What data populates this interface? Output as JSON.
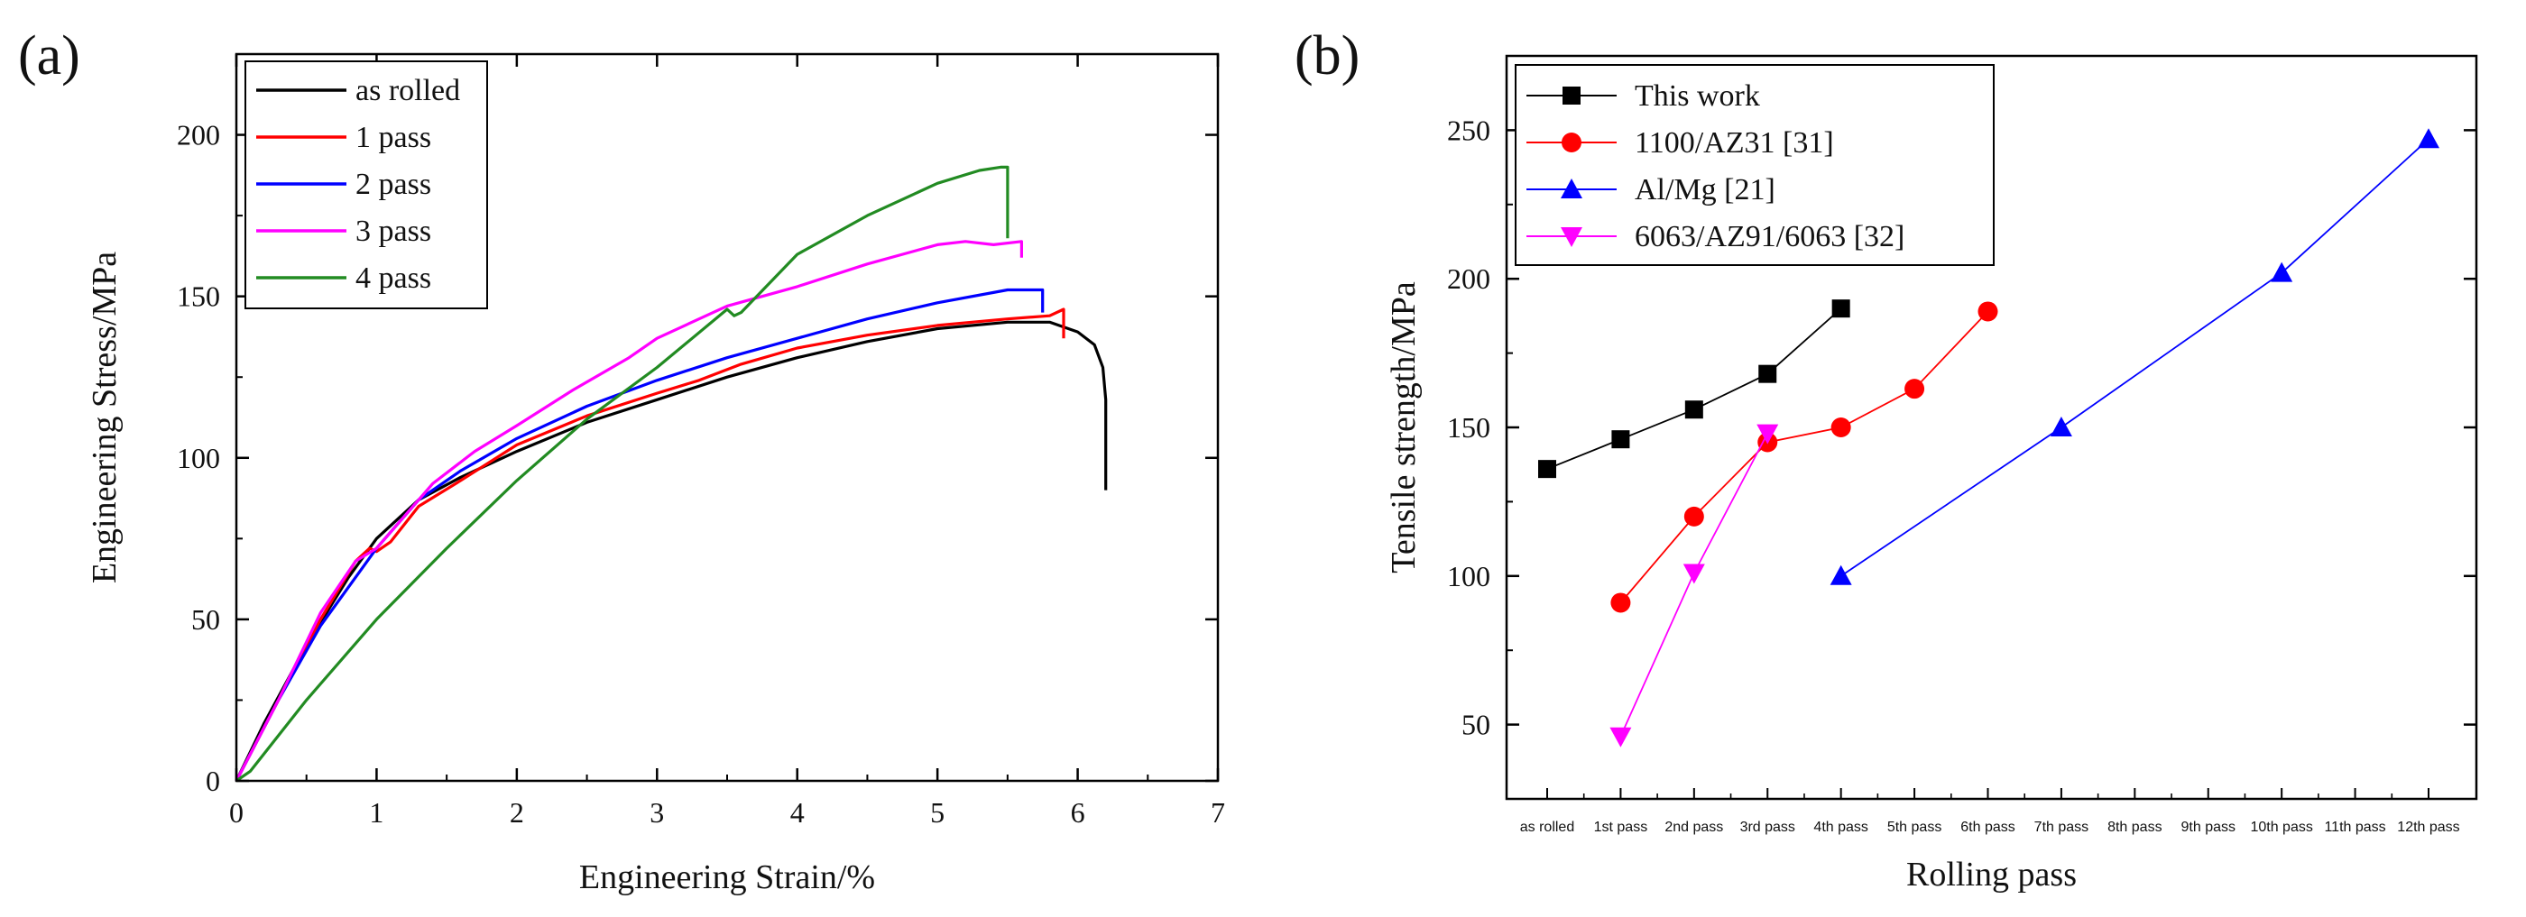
{
  "chart_data": [
    {
      "panel": "(a)",
      "type": "line",
      "xlabel": "Engineering Strain/%",
      "ylabel": "Engineering Stress/MPa",
      "xlim": [
        0,
        7
      ],
      "ylim": [
        0,
        225
      ],
      "xticks": [
        0,
        1,
        2,
        3,
        4,
        5,
        6,
        7
      ],
      "yticks": [
        0,
        50,
        100,
        150,
        200
      ],
      "legend_position": "top-left",
      "series": [
        {
          "name": "as rolled",
          "color": "#000000",
          "x": [
            0,
            0.2,
            0.5,
            0.8,
            1.0,
            1.3,
            1.6,
            2.0,
            2.5,
            3.0,
            3.5,
            4.0,
            4.5,
            5.0,
            5.5,
            5.8,
            6.0,
            6.12,
            6.18,
            6.2,
            6.2
          ],
          "y": [
            0,
            18,
            42,
            63,
            75,
            87,
            94,
            102,
            111,
            118,
            125,
            131,
            136,
            140,
            142,
            142,
            139,
            135,
            128,
            118,
            90
          ]
        },
        {
          "name": "1 pass",
          "color": "#ff0000",
          "x": [
            0,
            0.3,
            0.6,
            0.85,
            0.95,
            1.0,
            1.1,
            1.3,
            1.6,
            2.0,
            2.5,
            3.0,
            3.3,
            3.6,
            4.0,
            4.5,
            5.0,
            5.5,
            5.8,
            5.9,
            5.9
          ],
          "y": [
            0,
            25,
            50,
            68,
            72,
            71,
            74,
            85,
            93,
            104,
            113,
            120,
            124,
            129,
            134,
            138,
            141,
            143,
            144,
            146,
            137
          ]
        },
        {
          "name": "2 pass",
          "color": "#0000ff",
          "x": [
            0,
            0.3,
            0.6,
            1.0,
            1.3,
            1.6,
            2.0,
            2.5,
            3.0,
            3.5,
            4.0,
            4.5,
            5.0,
            5.5,
            5.7,
            5.75,
            5.75
          ],
          "y": [
            0,
            25,
            48,
            72,
            87,
            96,
            106,
            116,
            124,
            131,
            137,
            143,
            148,
            152,
            152,
            152,
            145
          ]
        },
        {
          "name": "3 pass",
          "color": "#ff00ff",
          "x": [
            0,
            0.3,
            0.6,
            0.85,
            1.0,
            1.2,
            1.4,
            1.7,
            2.0,
            2.4,
            2.8,
            3.0,
            3.5,
            4.0,
            4.5,
            5.0,
            5.2,
            5.4,
            5.6,
            5.6
          ],
          "y": [
            0,
            25,
            52,
            68,
            72,
            82,
            92,
            102,
            110,
            121,
            131,
            137,
            147,
            153,
            160,
            166,
            167,
            166,
            167,
            162
          ]
        },
        {
          "name": "4 pass",
          "color": "#228b22",
          "x": [
            0,
            0.1,
            0.5,
            1.0,
            1.5,
            2.0,
            2.5,
            3.0,
            3.5,
            3.55,
            3.6,
            4.0,
            4.5,
            5.0,
            5.3,
            5.45,
            5.5,
            5.5
          ],
          "y": [
            0,
            3,
            25,
            50,
            72,
            93,
            112,
            128,
            146,
            144,
            145,
            163,
            175,
            185,
            189,
            190,
            190,
            168
          ]
        }
      ]
    },
    {
      "panel": "(b)",
      "type": "line",
      "xlabel": "Rolling pass",
      "ylabel": "Tensile strength/MPa",
      "categories": [
        "as rolled",
        "1st pass",
        "2nd pass",
        "3rd pass",
        "4th pass",
        "5th pass",
        "6th pass",
        "7th pass",
        "8th pass",
        "9th pass",
        "10th pass",
        "11th pass",
        "12th pass"
      ],
      "ylim": [
        25,
        275
      ],
      "yticks": [
        50,
        100,
        150,
        200,
        250
      ],
      "legend_position": "top-left",
      "series": [
        {
          "name": "This work",
          "color": "#000000",
          "marker": "square",
          "x": [
            0,
            1,
            2,
            3,
            4
          ],
          "y": [
            136,
            146,
            156,
            168,
            190
          ]
        },
        {
          "name": "1100/AZ31 [31]",
          "color": "#ff0000",
          "marker": "circle",
          "x": [
            1,
            2,
            3,
            4,
            5,
            6
          ],
          "y": [
            91,
            120,
            145,
            150,
            163,
            189
          ]
        },
        {
          "name": "Al/Mg [21]",
          "color": "#0000ff",
          "marker": "triangle-up",
          "x": [
            4,
            7,
            10,
            12
          ],
          "y": [
            100,
            150,
            202,
            247
          ]
        },
        {
          "name": "6063/AZ91/6063 [32]",
          "color": "#ff00ff",
          "marker": "triangle-down",
          "x": [
            1,
            2,
            3
          ],
          "y": [
            46,
            101,
            148
          ]
        }
      ]
    }
  ]
}
